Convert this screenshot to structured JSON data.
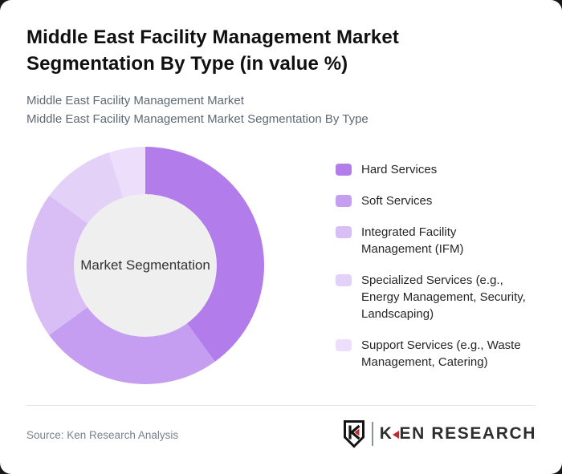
{
  "window": {
    "background": "#181818",
    "card_background": "#ffffff"
  },
  "header": {
    "title": "Middle East Facility Management Market Segmentation By Type (in value %)",
    "subtitle1": "Middle East Facility Management Market",
    "subtitle2": "Middle East Facility Management Market Segmentation By Type"
  },
  "chart_data": {
    "type": "pie",
    "variant": "donut",
    "title": "Middle East Facility Management Market Segmentation By Type (in value %)",
    "unit": "value %",
    "center_label": "Market Segmentation",
    "categories": [
      "Hard Services",
      "Soft Services",
      "Integrated Facility Management (IFM)",
      "Specialized Services (e.g., Energy Management, Security, Landscaping)",
      "Support Services (e.g., Waste Management, Catering)"
    ],
    "values": [
      40,
      25,
      20,
      10,
      5
    ],
    "colors": [
      "#b27ceb",
      "#c59df1",
      "#d9bef5",
      "#e4d1f8",
      "#eddffb"
    ],
    "hole_color": "#efefef",
    "start_angle_deg": 0,
    "direction": "clockwise",
    "legend_position": "right",
    "data_labels_shown": false
  },
  "legend": {
    "items": [
      {
        "label_lines": [
          "Hard Services"
        ]
      },
      {
        "label_lines": [
          "Soft Services"
        ]
      },
      {
        "label_lines": [
          "Integrated Facility",
          "Management (IFM)"
        ]
      },
      {
        "label_lines": [
          "Specialized Services (e.g.,",
          "Energy Management, Security,",
          "Landscaping)"
        ]
      },
      {
        "label_lines": [
          "Support Services (e.g., Waste",
          "Management, Catering)"
        ]
      }
    ]
  },
  "footer": {
    "source": "Source: Ken Research Analysis",
    "logo_k": "K",
    "logo_rest": "EN RESEARCH",
    "logo_red": "#c2282d"
  }
}
